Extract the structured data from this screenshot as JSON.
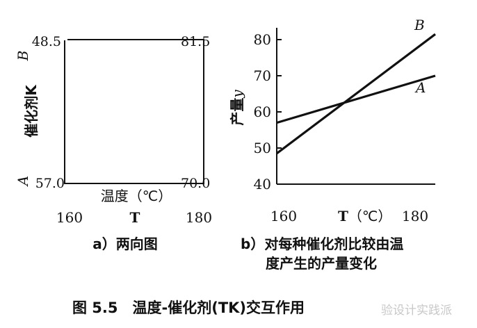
{
  "figure_caption": "图 5.5　温度-催化剂(TK)交互作用",
  "watermark": "验设计实践派",
  "chart_data": [
    {
      "type": "interaction-square",
      "caption": "a）两向图",
      "y_axis_label": "催化剂K",
      "y_axis_ends": [
        "A",
        "B"
      ],
      "x_axis_label": "温度（℃）",
      "x_var": "T",
      "x_ticks": [
        "160",
        "180"
      ],
      "corners": {
        "B_160": "48.5",
        "B_180": "81.5",
        "A_160": "57.0",
        "A_180": "70.0"
      }
    },
    {
      "type": "line",
      "caption": "b）对每种催化剂比较由温度产生的产量变化",
      "caption_lines": [
        "b）对每种催化剂比较由温",
        "度产生的产量变化"
      ],
      "ylabel": "产量y",
      "ylabel_parts": [
        "产量",
        "y"
      ],
      "xlabel_var": "T",
      "xlabel_unit": "（℃）",
      "x": [
        160,
        180
      ],
      "x_ticks": [
        "160",
        "180"
      ],
      "y_ticks": [
        "40",
        "50",
        "60",
        "70",
        "80"
      ],
      "ylim": [
        40,
        83
      ],
      "grid": false,
      "series": [
        {
          "name": "A",
          "values": [
            57.0,
            70.0
          ]
        },
        {
          "name": "B",
          "values": [
            48.5,
            81.5
          ]
        }
      ]
    }
  ]
}
